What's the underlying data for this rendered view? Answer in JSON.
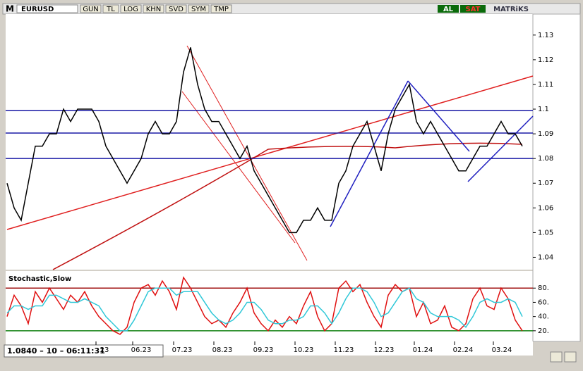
{
  "toolbar": {
    "logo": "M",
    "symbol": "EURUSD",
    "buttons": [
      "GUN",
      "TL",
      "LOG",
      "KHN",
      "SVD",
      "SYM",
      "TMP"
    ],
    "buy": "AL",
    "sell": "SAT",
    "brand": "MATRiKS"
  },
  "status": "1.0840 – 10 – 06:11:31",
  "chart_data": [
    {
      "type": "line",
      "color": "#000000",
      "values": [
        1.07,
        1.06,
        1.055,
        1.07,
        1.085,
        1.085,
        1.09,
        1.09,
        1.1,
        1.095,
        1.1,
        1.1,
        1.1,
        1.095,
        1.085,
        1.08,
        1.075,
        1.07,
        1.075,
        1.08,
        1.09,
        1.095,
        1.09,
        1.09,
        1.095,
        1.115,
        1.125,
        1.11,
        1.1,
        1.095,
        1.095,
        1.09,
        1.085,
        1.08,
        1.085,
        1.075,
        1.07,
        1.065,
        1.06,
        1.055,
        1.05,
        1.05,
        1.055,
        1.055,
        1.06,
        1.055,
        1.055,
        1.07,
        1.075,
        1.085,
        1.09,
        1.095,
        1.085,
        1.075,
        1.09,
        1.1,
        1.105,
        1.11,
        1.095,
        1.09,
        1.095,
        1.09,
        1.085,
        1.08,
        1.075,
        1.075,
        1.08,
        1.085,
        1.085,
        1.09,
        1.095,
        1.09,
        1.09,
        1.085
      ],
      "levels": [
        1.0995,
        1.0903,
        1.08
      ],
      "level_color": "#1a1aa6",
      "ylim": [
        1.035,
        1.1385
      ],
      "yticks": [
        1.04,
        1.05,
        1.06,
        1.07,
        1.08,
        1.09,
        1.1,
        1.11,
        1.12,
        1.13
      ],
      "xticks": [
        {
          "value": 13.8,
          "label": "23"
        },
        {
          "value": 19,
          "label": "06.23"
        },
        {
          "value": 24.8,
          "label": "07.23"
        },
        {
          "value": 30.5,
          "label": "08.23"
        },
        {
          "value": 36.3,
          "label": "09.23"
        },
        {
          "value": 42,
          "label": "10.23"
        },
        {
          "value": 47.7,
          "label": "11.23"
        },
        {
          "value": 53.4,
          "label": "12.23"
        },
        {
          "value": 58.9,
          "label": "01.24"
        },
        {
          "value": 64.6,
          "label": "02.24"
        },
        {
          "value": 70.1,
          "label": "03.24"
        }
      ]
    },
    {
      "type": "line",
      "title": "Stochastic,Slow",
      "series": [
        {
          "color": "#e01010",
          "values": [
            40,
            70,
            55,
            30,
            75,
            60,
            80,
            65,
            50,
            70,
            60,
            75,
            55,
            40,
            30,
            20,
            15,
            25,
            60,
            80,
            85,
            70,
            90,
            75,
            50,
            95,
            80,
            60,
            40,
            30,
            35,
            25,
            45,
            60,
            80,
            45,
            30,
            20,
            35,
            25,
            40,
            30,
            55,
            75,
            40,
            20,
            30,
            80,
            90,
            75,
            85,
            60,
            40,
            25,
            70,
            85,
            75,
            80,
            40,
            60,
            30,
            35,
            55,
            25,
            20,
            30,
            65,
            80,
            55,
            50,
            80,
            65,
            35,
            20
          ]
        },
        {
          "color": "#30c8d8",
          "values": [
            45,
            55,
            55,
            50,
            55,
            55,
            70,
            70,
            65,
            60,
            60,
            65,
            60,
            55,
            40,
            30,
            20,
            20,
            35,
            55,
            75,
            80,
            80,
            80,
            70,
            75,
            75,
            75,
            60,
            45,
            35,
            30,
            35,
            45,
            60,
            60,
            50,
            35,
            30,
            30,
            35,
            35,
            40,
            55,
            55,
            45,
            30,
            45,
            65,
            80,
            80,
            75,
            60,
            40,
            45,
            60,
            75,
            80,
            65,
            60,
            45,
            40,
            40,
            40,
            35,
            25,
            40,
            60,
            65,
            60,
            60,
            65,
            60,
            40
          ]
        }
      ],
      "levels": [
        80,
        20
      ],
      "level_colors": [
        "#a01010",
        "#108010"
      ],
      "ylim": [
        5,
        104
      ],
      "yticks": [
        {
          "value": 80,
          "label": "80."
        },
        {
          "value": 60,
          "label": "60."
        },
        {
          "value": 40,
          "label": "40."
        },
        {
          "value": 20,
          "label": "20."
        }
      ]
    }
  ]
}
